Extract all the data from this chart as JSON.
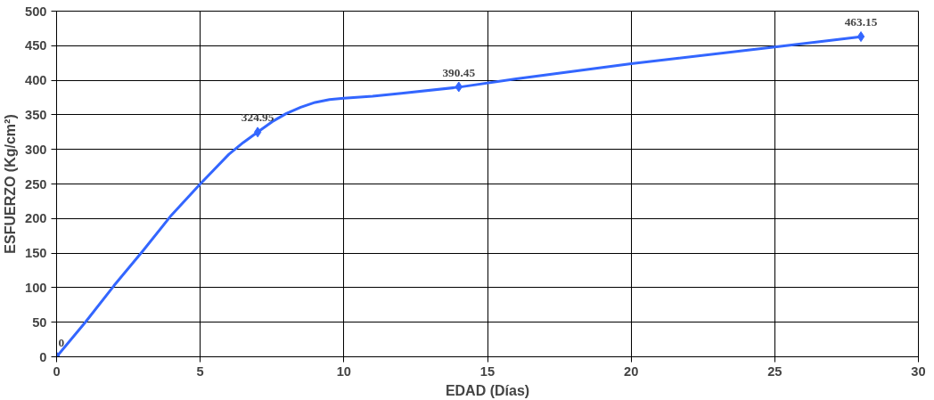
{
  "chart_data": {
    "type": "line",
    "xlabel": "EDAD (Días)",
    "ylabel": "ESFUERZO (Kg/cm²)",
    "series": [
      {
        "color": "#3366ff",
        "marker": "none",
        "x": [
          0,
          1,
          2,
          3,
          4,
          5,
          6,
          6.5,
          7,
          7.5,
          8,
          8.5,
          9,
          9.5,
          10,
          11,
          12,
          14,
          16,
          20,
          25,
          28
        ],
        "values": [
          0,
          50,
          103,
          153,
          205,
          250,
          293,
          310,
          325,
          340,
          352,
          361,
          368,
          372,
          374,
          377,
          381,
          390,
          402,
          424,
          448,
          463
        ]
      },
      {
        "type": "scatter",
        "color": "#3366ff",
        "marker": "diamond",
        "x": [
          0,
          7,
          14,
          28
        ],
        "values": [
          0,
          324.95,
          390.45,
          463.15
        ],
        "value_labels": [
          "0",
          "324.95",
          "390.45",
          "463.15"
        ]
      }
    ],
    "xlim": [
      0,
      30
    ],
    "xticks": [
      0,
      5,
      10,
      15,
      20,
      25,
      30
    ],
    "ylim": [
      0,
      500
    ],
    "yticks": [
      0,
      50,
      100,
      150,
      200,
      250,
      300,
      350,
      400,
      450,
      500
    ],
    "grid": true,
    "line_style": "solid"
  }
}
